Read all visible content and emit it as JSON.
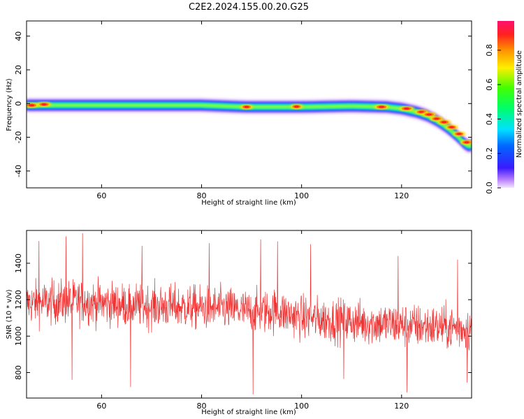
{
  "chart_data": [
    {
      "type": "heatmap",
      "title": "C2E2.2024.155.00.20.G25",
      "xlabel": "Height of straight line (km)",
      "ylabel": "Frequency (Hz)",
      "xlim": [
        45,
        134
      ],
      "ylim": [
        -50,
        49
      ],
      "xticks": [
        60,
        80,
        100,
        120
      ],
      "yticks": [
        -40,
        -20,
        0,
        20,
        40
      ],
      "grid": false,
      "ridge": {
        "x": [
          45,
          60,
          80,
          89,
          100,
          110,
          117,
          120,
          123,
          125,
          127,
          129,
          131,
          133
        ],
        "y": [
          -1,
          -1,
          -1,
          -2,
          -2,
          -1.5,
          -2,
          -3,
          -5,
          -7,
          -10,
          -14,
          -19,
          -25
        ]
      },
      "peaks": [
        {
          "x": 46,
          "y": -1,
          "amplitude": 1.0
        },
        {
          "x": 48.5,
          "y": -0.5,
          "amplitude": 0.95
        },
        {
          "x": 89,
          "y": -2,
          "amplitude": 0.85
        },
        {
          "x": 99,
          "y": -1.8,
          "amplitude": 0.85
        },
        {
          "x": 116,
          "y": -2,
          "amplitude": 1.0
        },
        {
          "x": 121,
          "y": -3,
          "amplitude": 1.0
        },
        {
          "x": 124,
          "y": -5,
          "amplitude": 0.95
        },
        {
          "x": 125.5,
          "y": -6.5,
          "amplitude": 0.95
        },
        {
          "x": 127,
          "y": -9,
          "amplitude": 0.9
        },
        {
          "x": 128.5,
          "y": -11,
          "amplitude": 0.9
        },
        {
          "x": 130,
          "y": -14,
          "amplitude": 0.85
        },
        {
          "x": 131.5,
          "y": -18,
          "amplitude": 0.85
        },
        {
          "x": 133,
          "y": -23,
          "amplitude": 0.85
        }
      ],
      "colorbar": {
        "label": "Normalized spectral amplitude",
        "range": [
          0,
          0.97
        ],
        "ticks": [
          0.0,
          0.2,
          0.4,
          0.6,
          0.8
        ],
        "tick_labels": [
          "0.0",
          "0.2",
          "0.4",
          "0.6",
          "0.8"
        ],
        "colormap": "gist_rainbow"
      }
    },
    {
      "type": "line",
      "xlabel": "Height of straight line (km)",
      "ylabel": "SNR (10 * v/v)",
      "xlim": [
        45,
        134
      ],
      "ylim": [
        660,
        1580
      ],
      "xticks": [
        60,
        80,
        100,
        120
      ],
      "yticks": [
        800,
        1000,
        1200,
        1400
      ],
      "grid": false,
      "color": "#ef3333",
      "trend": {
        "x": [
          45,
          55,
          65,
          75,
          85,
          90,
          95,
          100,
          110,
          120,
          134
        ],
        "y": [
          1180,
          1190,
          1170,
          1160,
          1150,
          1130,
          1140,
          1100,
          1080,
          1060,
          1040
        ]
      },
      "noise_amplitude": 110,
      "n_samples": 1400,
      "spikes": [
        {
          "x": 56.2,
          "y": 1565
        },
        {
          "x": 52.9,
          "y": 1548
        },
        {
          "x": 47.5,
          "y": 1522
        },
        {
          "x": 91.8,
          "y": 1530
        },
        {
          "x": 68.1,
          "y": 1495
        },
        {
          "x": 81.5,
          "y": 1510
        },
        {
          "x": 95.2,
          "y": 1520
        },
        {
          "x": 101.8,
          "y": 1505
        },
        {
          "x": 119.3,
          "y": 1440
        },
        {
          "x": 131.2,
          "y": 1420
        },
        {
          "x": 90.3,
          "y": 680
        },
        {
          "x": 121.1,
          "y": 690
        },
        {
          "x": 54.1,
          "y": 760
        },
        {
          "x": 65.8,
          "y": 720
        },
        {
          "x": 133.1,
          "y": 745
        },
        {
          "x": 108.4,
          "y": 765
        }
      ]
    }
  ]
}
